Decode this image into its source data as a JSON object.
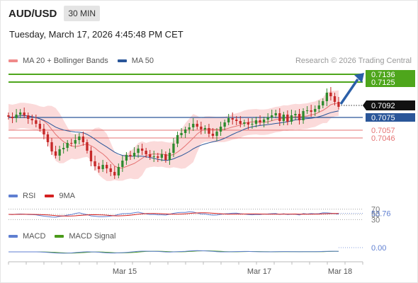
{
  "header": {
    "symbol": "AUD/USD",
    "timeframe": "30 MIN"
  },
  "datetime": "Tuesday, March 17, 2026 4:45:48 PM CET",
  "legend_main": [
    {
      "label": "MA 20 + Bollinger Bands",
      "color": "#f08a8a"
    },
    {
      "label": "MA 50",
      "color": "#2a5699"
    }
  ],
  "credit": "Research © 2026 Trading Central",
  "legend_rsi": [
    {
      "label": "RSI",
      "color": "#5f7fd1"
    },
    {
      "label": "9MA",
      "color": "#d42020"
    }
  ],
  "legend_macd": [
    {
      "label": "MACD",
      "color": "#5f7fd1"
    },
    {
      "label": "MACD Signal",
      "color": "#4a9a1a"
    }
  ],
  "colors": {
    "bull": "#2e8b2e",
    "bear": "#c62828",
    "band_fill": "#fbdada",
    "ma20": "#e57373",
    "ma50": "#2a5699",
    "resistance": "#4ea61c",
    "support_blue": "#2a5699",
    "support_red": "#e57373",
    "arrow": "#2a5fa8",
    "current_tag": "#111111"
  },
  "chart_data": {
    "type": "candlestick",
    "instrument": "AUD/USD",
    "timeframe": "30 MIN",
    "x_ticks": [
      "Mar 15",
      "Mar 17",
      "Mar 18"
    ],
    "y_range": [
      0.6985,
      0.7145
    ],
    "levels": [
      {
        "value": 0.7136,
        "label": "0.7136",
        "kind": "resistance"
      },
      {
        "value": 0.7125,
        "label": "0.7125",
        "kind": "resistance"
      },
      {
        "value": 0.7092,
        "label": "0.7092",
        "kind": "current"
      },
      {
        "value": 0.7075,
        "label": "0.7075",
        "kind": "pivot"
      },
      {
        "value": 0.7057,
        "label": "0.7057",
        "kind": "support"
      },
      {
        "value": 0.7046,
        "label": "0.7046",
        "kind": "support"
      }
    ],
    "close_series": [
      0.7076,
      0.7074,
      0.7079,
      0.7082,
      0.7078,
      0.7073,
      0.7071,
      0.7066,
      0.7059,
      0.7051,
      0.704,
      0.7027,
      0.7021,
      0.703,
      0.7032,
      0.7039,
      0.7038,
      0.7043,
      0.7048,
      0.704,
      0.7028,
      0.7013,
      0.7006,
      0.7002,
      0.7008,
      0.7003,
      0.6998,
      0.6993,
      0.7005,
      0.7014,
      0.7022,
      0.702,
      0.7025,
      0.7031,
      0.7028,
      0.7023,
      0.7019,
      0.702,
      0.7018,
      0.7023,
      0.7015,
      0.7025,
      0.7038,
      0.705,
      0.7053,
      0.7058,
      0.7061,
      0.7066,
      0.7062,
      0.7058,
      0.706,
      0.7052,
      0.7049,
      0.7055,
      0.7062,
      0.7068,
      0.7074,
      0.7072,
      0.707,
      0.7066,
      0.7068,
      0.7065,
      0.7066,
      0.7071,
      0.7068,
      0.7072,
      0.7075,
      0.7078,
      0.7081,
      0.707,
      0.7079,
      0.7069,
      0.7078,
      0.708,
      0.7071,
      0.7084,
      0.7085,
      0.7083,
      0.7087,
      0.7092,
      0.7098,
      0.711,
      0.7105,
      0.7097,
      0.709
    ],
    "rsi": {
      "levels": [
        70,
        50,
        30
      ],
      "current": 53.76,
      "current_label": "53.76"
    },
    "macd": {
      "current": 0.0,
      "current_label": "0.00"
    }
  }
}
